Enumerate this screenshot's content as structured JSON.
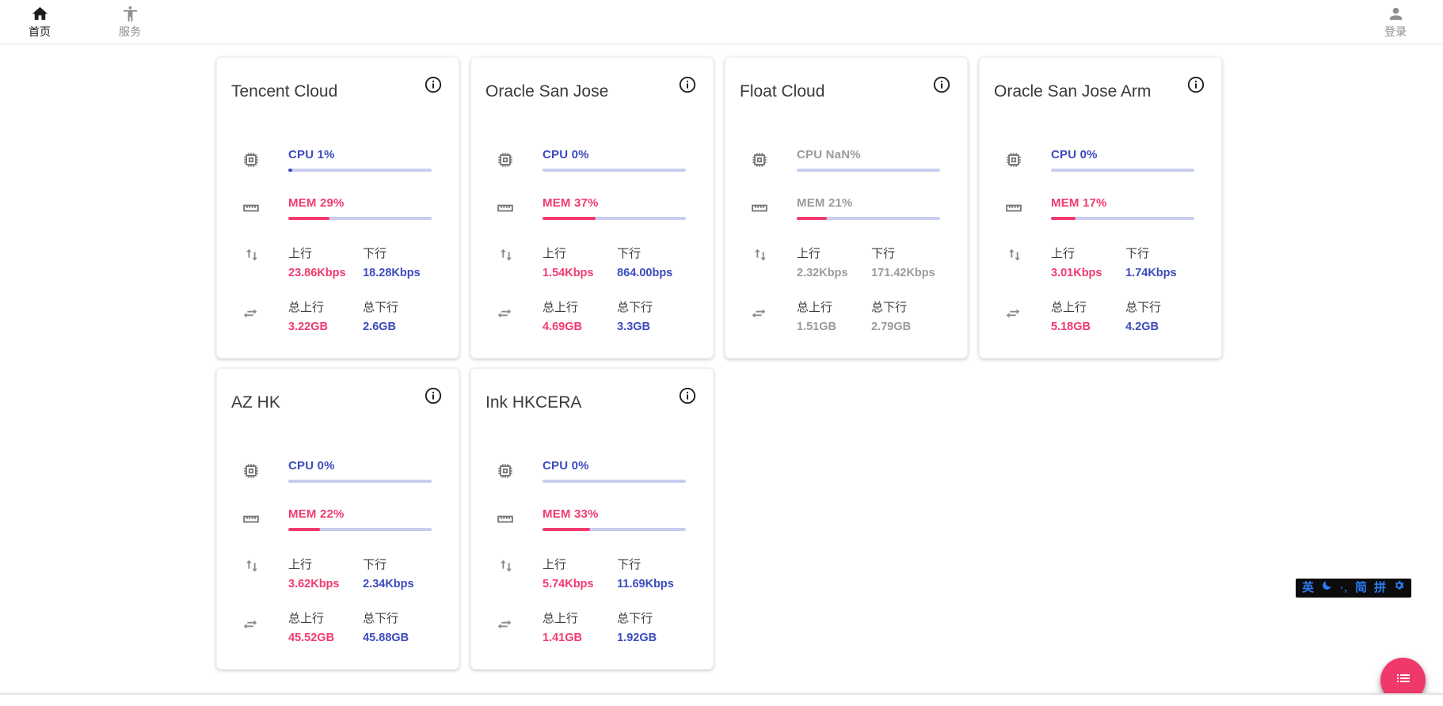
{
  "nav": {
    "home_label": "首页",
    "services_label": "服务",
    "login_label": "登录"
  },
  "labels": {
    "upload": "上行",
    "download": "下行",
    "total_upload": "总上行",
    "total_download": "总下行"
  },
  "colors": {
    "accent_blue": "#3c4bbd",
    "accent_pink": "#f23a6f",
    "bar_track": "#c9cdee",
    "muted_text": "#9b9b9b",
    "fab_pink": "#f0396b",
    "ime_blue": "#2c7bf2"
  },
  "servers": [
    {
      "name": "Tencent Cloud",
      "cpu_text": "CPU 1%",
      "cpu_pct": 1,
      "mem_text": "MEM 29%",
      "mem_pct": 29,
      "upload": "23.86Kbps",
      "download": "18.28Kbps",
      "total_upload": "3.22GB",
      "total_download": "2.6GB",
      "muted": false
    },
    {
      "name": "Oracle San Jose",
      "cpu_text": "CPU 0%",
      "cpu_pct": 0,
      "mem_text": "MEM 37%",
      "mem_pct": 37,
      "upload": "1.54Kbps",
      "download": "864.00bps",
      "total_upload": "4.69GB",
      "total_download": "3.3GB",
      "muted": false
    },
    {
      "name": "Float Cloud",
      "cpu_text": "CPU NaN%",
      "cpu_pct": 0,
      "mem_text": "MEM 21%",
      "mem_pct": 21,
      "upload": "2.32Kbps",
      "download": "171.42Kbps",
      "total_upload": "1.51GB",
      "total_download": "2.79GB",
      "muted": true
    },
    {
      "name": "Oracle San Jose Arm",
      "cpu_text": "CPU 0%",
      "cpu_pct": 0,
      "mem_text": "MEM 17%",
      "mem_pct": 17,
      "upload": "3.01Kbps",
      "download": "1.74Kbps",
      "total_upload": "5.18GB",
      "total_download": "4.2GB",
      "muted": false
    },
    {
      "name": "AZ HK",
      "cpu_text": "CPU 0%",
      "cpu_pct": 0,
      "mem_text": "MEM 22%",
      "mem_pct": 22,
      "upload": "3.62Kbps",
      "download": "2.34Kbps",
      "total_upload": "45.52GB",
      "total_download": "45.88GB",
      "muted": false
    },
    {
      "name": "Ink HKCERA",
      "cpu_text": "CPU 0%",
      "cpu_pct": 0,
      "mem_text": "MEM 33%",
      "mem_pct": 33,
      "upload": "5.74Kbps",
      "download": "11.69Kbps",
      "total_upload": "1.41GB",
      "total_download": "1.92GB",
      "muted": false
    }
  ],
  "ime": {
    "lang": "英",
    "moon": "moon-icon",
    "punct": "·,",
    "simplified": "简",
    "pinyin": "拼",
    "settings": "gear-icon"
  }
}
